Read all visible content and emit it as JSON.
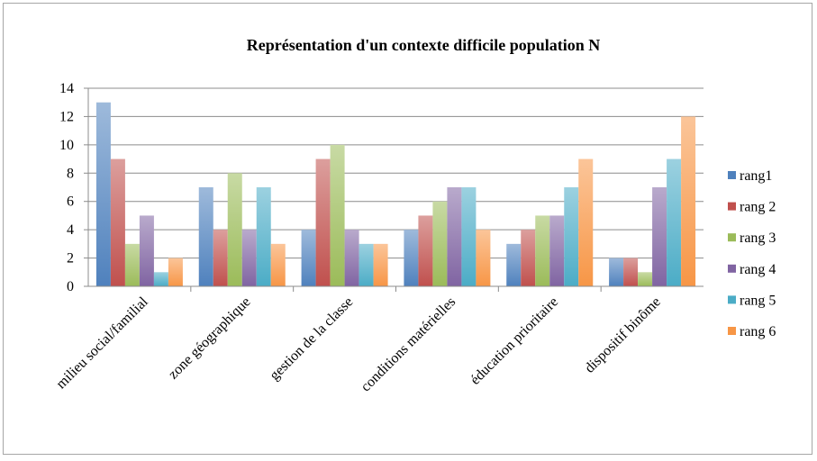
{
  "chart_data": {
    "type": "bar",
    "title": "Représentation d'un contexte difficile population N",
    "xlabel": "",
    "ylabel": "",
    "ylim": [
      0,
      14
    ],
    "yticks": [
      0,
      2,
      4,
      6,
      8,
      10,
      12,
      14
    ],
    "grid": true,
    "legend_position": "right",
    "categories": [
      "milieu social/familial",
      "zone géographique",
      "gestion de la classe",
      "conditions matérielles",
      "éducation prioritaire",
      "dispositif binôme"
    ],
    "series": [
      {
        "name": "rang1",
        "color": "#4f81bd",
        "values": [
          13,
          7,
          4,
          4,
          3,
          2
        ]
      },
      {
        "name": "rang 2",
        "color": "#c0504d",
        "values": [
          9,
          4,
          9,
          5,
          4,
          2
        ]
      },
      {
        "name": "rang 3",
        "color": "#9bbb59",
        "values": [
          3,
          8,
          10,
          6,
          5,
          1
        ]
      },
      {
        "name": "rang 4",
        "color": "#8064a2",
        "values": [
          5,
          4,
          4,
          7,
          5,
          7
        ]
      },
      {
        "name": "rang 5",
        "color": "#4bacc6",
        "values": [
          1,
          7,
          3,
          7,
          7,
          9
        ]
      },
      {
        "name": "rang 6",
        "color": "#f79646",
        "values": [
          2,
          3,
          3,
          4,
          9,
          12
        ]
      }
    ]
  }
}
